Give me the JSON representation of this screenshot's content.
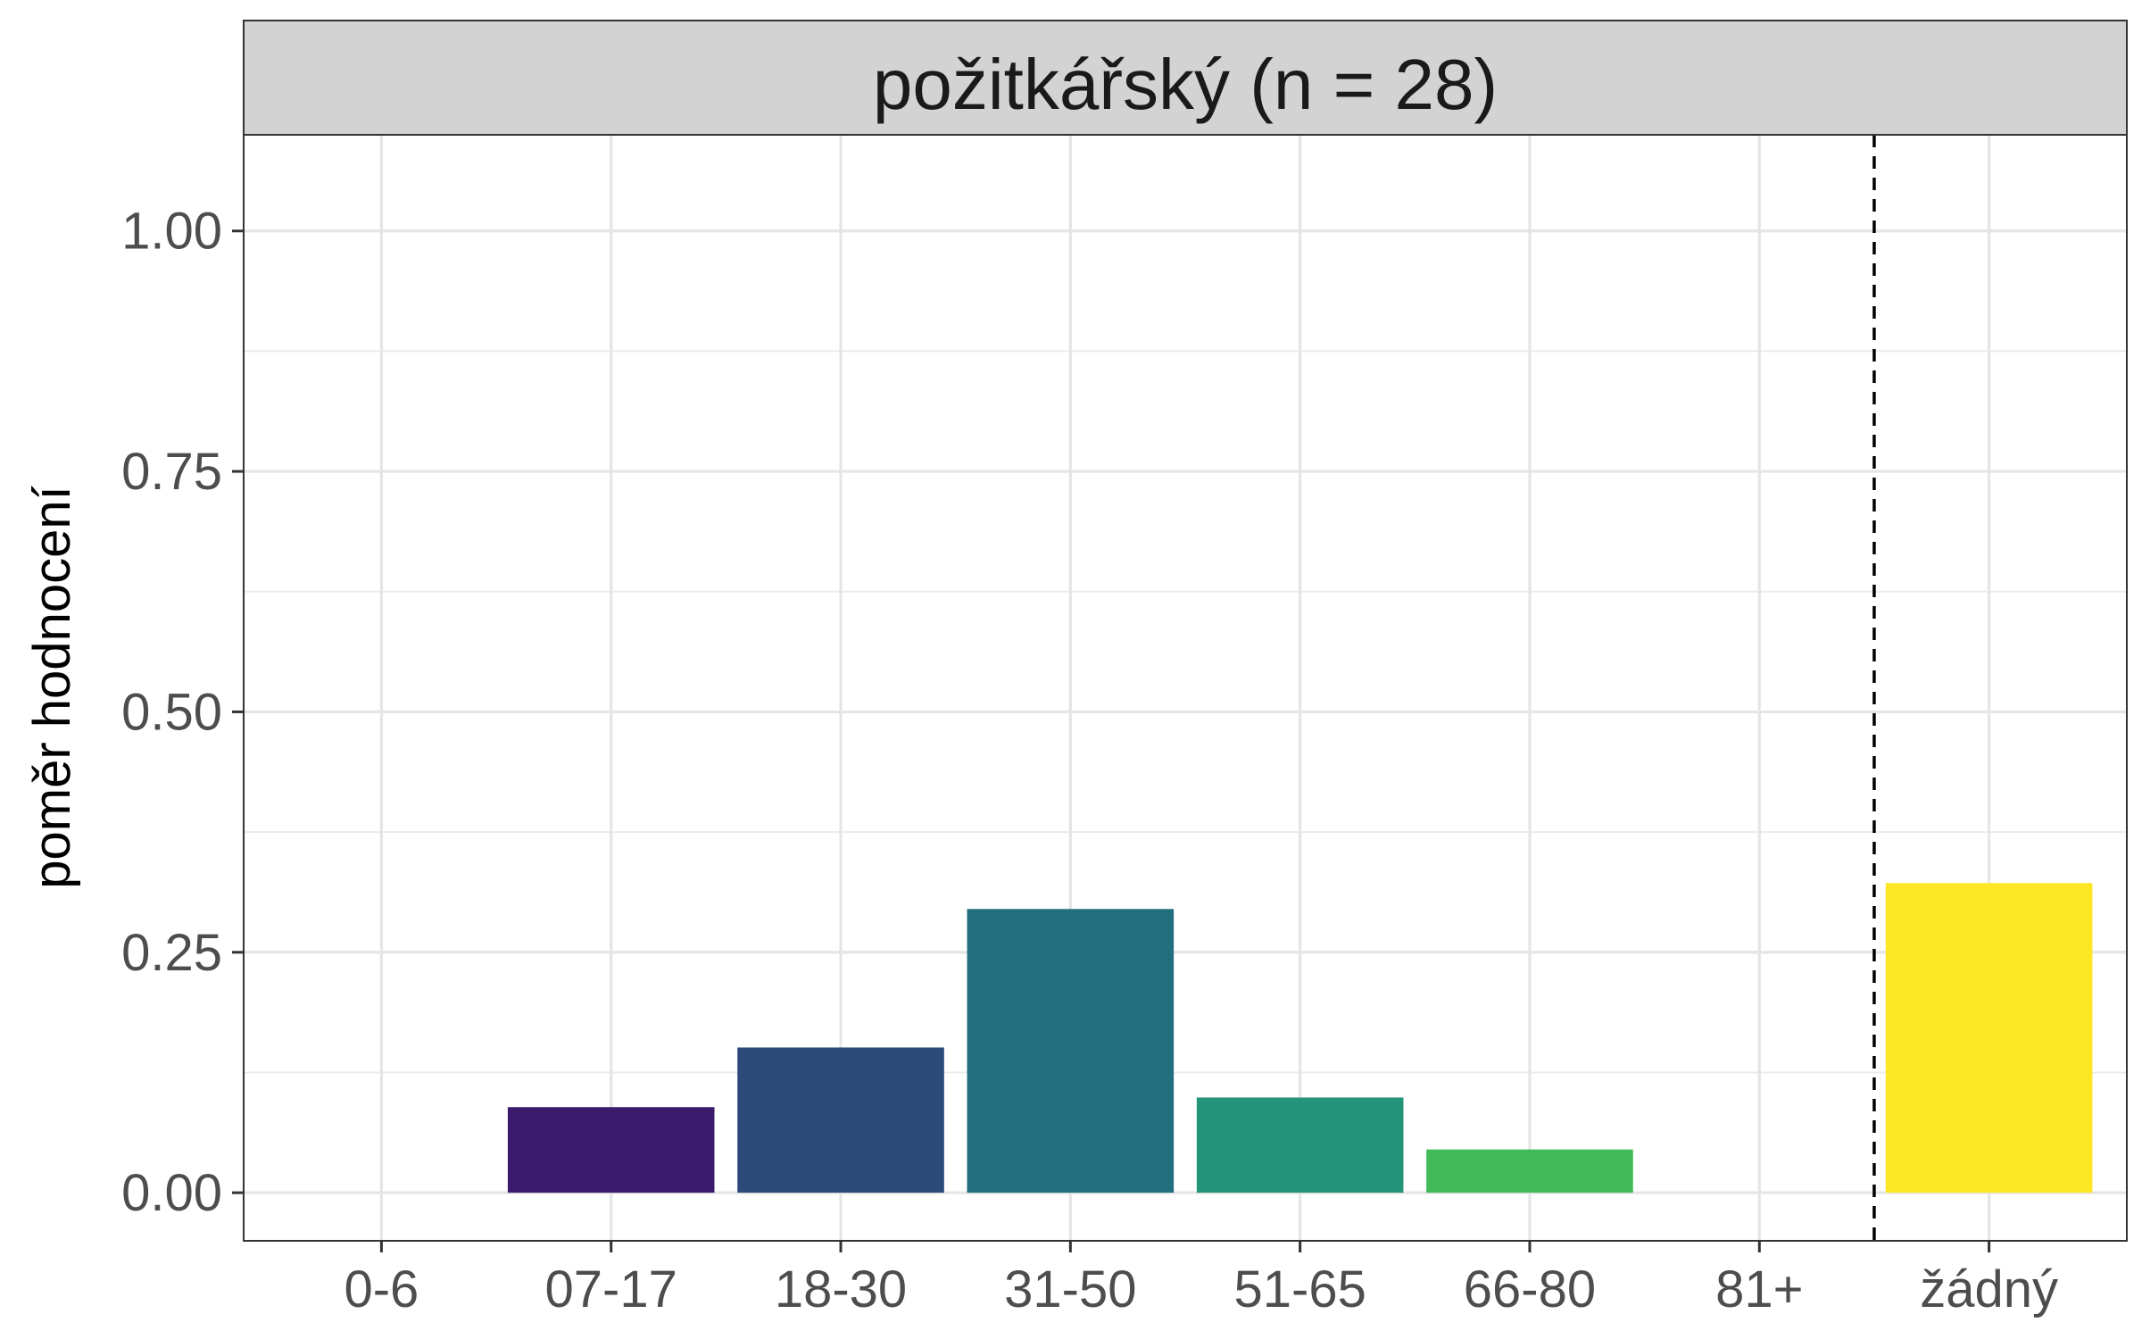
{
  "chart_data": {
    "type": "bar",
    "facet_title": "požitkářský (n = 28)",
    "xlabel": "",
    "ylabel": "poměr hodnocení",
    "categories": [
      "0-6",
      "07-17",
      "18-30",
      "31-50",
      "51-65",
      "66-80",
      "81+",
      "žádný"
    ],
    "values": [
      0,
      0.089,
      0.151,
      0.295,
      0.099,
      0.045,
      0,
      0.322
    ],
    "colors": [
      "#440154",
      "#3B1C6C",
      "#2C4A7A",
      "#216F7C",
      "#23947A",
      "#41BA57",
      "#8FD744",
      "#FDE725"
    ],
    "ylim": [
      -0.05,
      1.1
    ],
    "yticks": [
      0,
      0.25,
      0.5,
      0.75,
      1.0
    ],
    "ytick_labels": [
      "0.00",
      "0.25",
      "0.50",
      "0.75",
      "1.00"
    ],
    "separator_after_category": "81+",
    "grid": true
  }
}
